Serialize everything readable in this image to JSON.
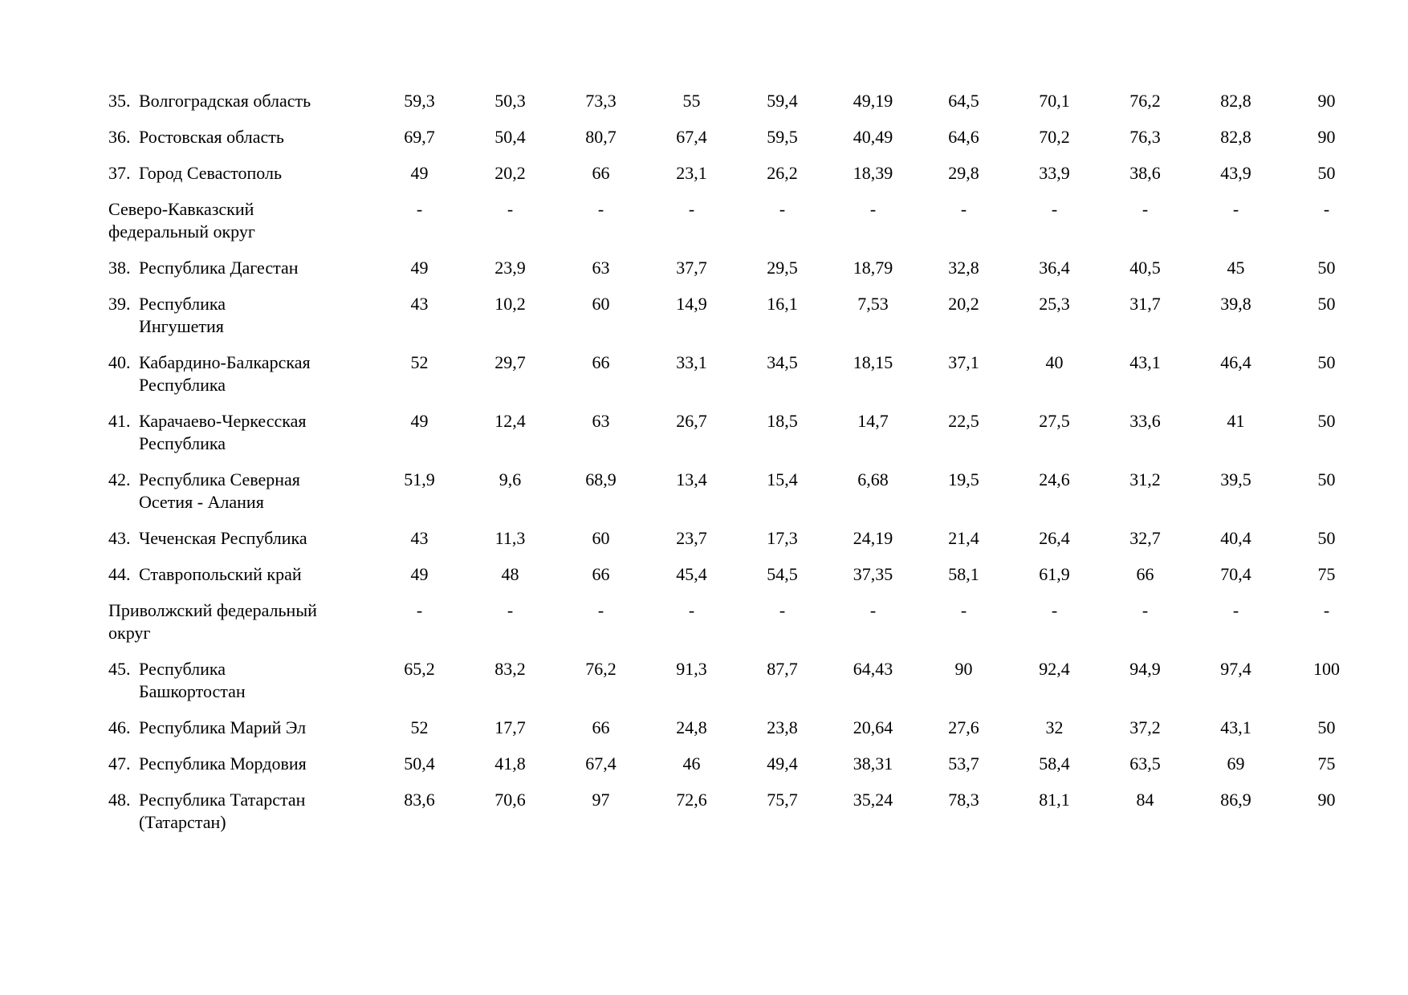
{
  "page": {
    "background_color": "#ffffff",
    "text_color": "#000000"
  },
  "table": {
    "columns_count": 11,
    "rows": [
      {
        "num": "35.",
        "name": "Волгоградская область",
        "district": false,
        "values": [
          "59,3",
          "50,3",
          "73,3",
          "55",
          "59,4",
          "49,19",
          "64,5",
          "70,1",
          "76,2",
          "82,8",
          "90"
        ]
      },
      {
        "num": "36.",
        "name": "Ростовская область",
        "district": false,
        "values": [
          "69,7",
          "50,4",
          "80,7",
          "67,4",
          "59,5",
          "40,49",
          "64,6",
          "70,2",
          "76,3",
          "82,8",
          "90"
        ]
      },
      {
        "num": "37.",
        "name": "Город Севастополь",
        "district": false,
        "values": [
          "49",
          "20,2",
          "66",
          "23,1",
          "26,2",
          "18,39",
          "29,8",
          "33,9",
          "38,6",
          "43,9",
          "50"
        ]
      },
      {
        "num": null,
        "name": "Северо-Кавказский\nфедеральный округ",
        "district": true,
        "values": [
          "-",
          "-",
          "-",
          "-",
          "-",
          "-",
          "-",
          "-",
          "-",
          "-",
          "-"
        ]
      },
      {
        "num": "38.",
        "name": "Республика Дагестан",
        "district": false,
        "values": [
          "49",
          "23,9",
          "63",
          "37,7",
          "29,5",
          "18,79",
          "32,8",
          "36,4",
          "40,5",
          "45",
          "50"
        ]
      },
      {
        "num": "39.",
        "name": "Республика\nИнгушетия",
        "district": false,
        "values": [
          "43",
          "10,2",
          "60",
          "14,9",
          "16,1",
          "7,53",
          "20,2",
          "25,3",
          "31,7",
          "39,8",
          "50"
        ]
      },
      {
        "num": "40.",
        "name": "Кабардино-Балкарская\nРеспублика",
        "district": false,
        "values": [
          "52",
          "29,7",
          "66",
          "33,1",
          "34,5",
          "18,15",
          "37,1",
          "40",
          "43,1",
          "46,4",
          "50"
        ]
      },
      {
        "num": "41.",
        "name": "Карачаево-Черкесская\nРеспублика",
        "district": false,
        "values": [
          "49",
          "12,4",
          "63",
          "26,7",
          "18,5",
          "14,7",
          "22,5",
          "27,5",
          "33,6",
          "41",
          "50"
        ]
      },
      {
        "num": "42.",
        "name": "Республика Северная\nОсетия - Алания",
        "district": false,
        "values": [
          "51,9",
          "9,6",
          "68,9",
          "13,4",
          "15,4",
          "6,68",
          "19,5",
          "24,6",
          "31,2",
          "39,5",
          "50"
        ]
      },
      {
        "num": "43.",
        "name": "Чеченская Республика",
        "district": false,
        "values": [
          "43",
          "11,3",
          "60",
          "23,7",
          "17,3",
          "24,19",
          "21,4",
          "26,4",
          "32,7",
          "40,4",
          "50"
        ]
      },
      {
        "num": "44.",
        "name": "Ставропольский край",
        "district": false,
        "values": [
          "49",
          "48",
          "66",
          "45,4",
          "54,5",
          "37,35",
          "58,1",
          "61,9",
          "66",
          "70,4",
          "75"
        ]
      },
      {
        "num": null,
        "name": "Приволжский федеральный\nокруг",
        "district": true,
        "values": [
          "-",
          "-",
          "-",
          "-",
          "-",
          "-",
          "-",
          "-",
          "-",
          "-",
          "-"
        ]
      },
      {
        "num": "45.",
        "name": "Республика\nБашкортостан",
        "district": false,
        "values": [
          "65,2",
          "83,2",
          "76,2",
          "91,3",
          "87,7",
          "64,43",
          "90",
          "92,4",
          "94,9",
          "97,4",
          "100"
        ]
      },
      {
        "num": "46.",
        "name": "Республика Марий Эл",
        "district": false,
        "values": [
          "52",
          "17,7",
          "66",
          "24,8",
          "23,8",
          "20,64",
          "27,6",
          "32",
          "37,2",
          "43,1",
          "50"
        ]
      },
      {
        "num": "47.",
        "name": "Республика Мордовия",
        "district": false,
        "values": [
          "50,4",
          "41,8",
          "67,4",
          "46",
          "49,4",
          "38,31",
          "53,7",
          "58,4",
          "63,5",
          "69",
          "75"
        ]
      },
      {
        "num": "48.",
        "name": "Республика Татарстан\n(Татарстан)",
        "district": false,
        "values": [
          "83,6",
          "70,6",
          "97",
          "72,6",
          "75,7",
          "35,24",
          "78,3",
          "81,1",
          "84",
          "86,9",
          "90"
        ]
      }
    ]
  }
}
